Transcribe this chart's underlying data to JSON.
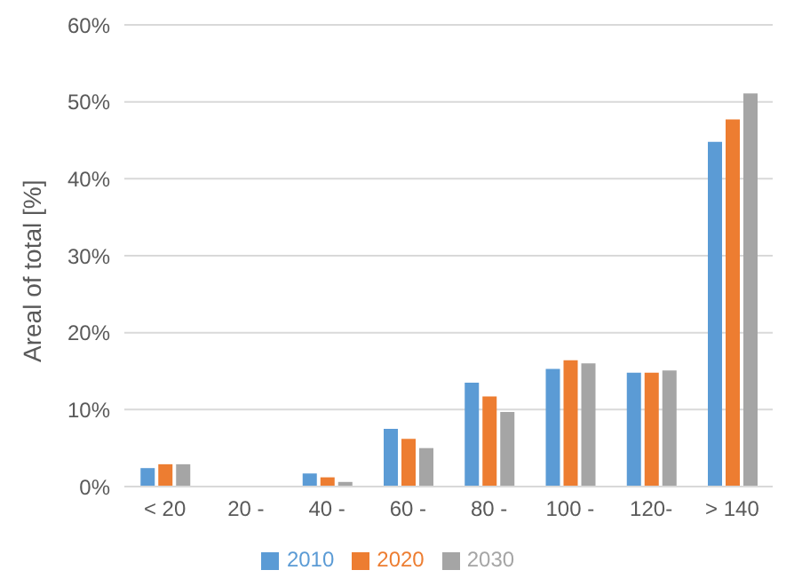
{
  "chart_data": {
    "type": "bar",
    "ylabel": "Areal of total [%]",
    "categories": [
      "< 20",
      "20 -",
      "40 -",
      "60 -",
      "80 -",
      "100 -",
      "120-",
      "> 140"
    ],
    "series": [
      {
        "name": "2010",
        "color": "#5b9bd5",
        "values": [
          2.4,
          0,
          1.7,
          7.5,
          13.5,
          15.3,
          14.8,
          44.8
        ]
      },
      {
        "name": "2020",
        "color": "#ed7d31",
        "values": [
          2.9,
          0,
          1.2,
          6.2,
          11.7,
          16.4,
          14.8,
          47.7
        ]
      },
      {
        "name": "2030",
        "color": "#a5a5a5",
        "values": [
          2.9,
          0,
          0.6,
          5.0,
          9.7,
          16.0,
          15.1,
          51.1
        ]
      }
    ],
    "ylim": [
      0,
      60
    ],
    "yticks": [
      {
        "value": 0,
        "label": "0%"
      },
      {
        "value": 10,
        "label": "10%"
      },
      {
        "value": 20,
        "label": "20%"
      },
      {
        "value": 30,
        "label": "30%"
      },
      {
        "value": 40,
        "label": "40%"
      },
      {
        "value": 50,
        "label": "50%"
      },
      {
        "value": 60,
        "label": "60%"
      }
    ],
    "grid": "y",
    "legend": "bottom"
  }
}
